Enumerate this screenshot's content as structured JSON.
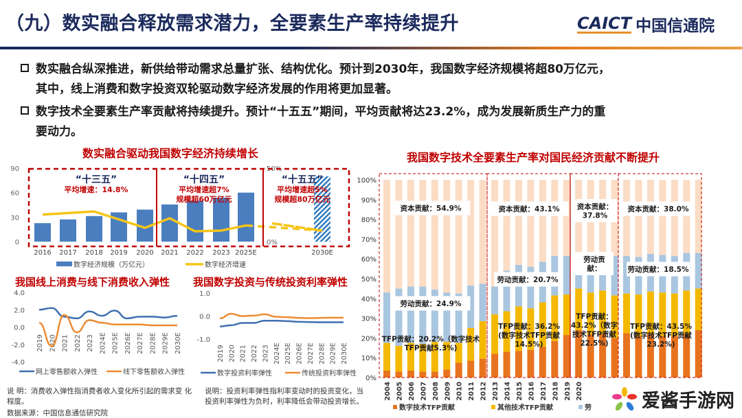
{
  "header": {
    "title": "（九）数实融合释放需求潜力，全要素生产率持续提升",
    "logo_en": "CAICT",
    "logo_cn": "中国信通院"
  },
  "bullets": [
    {
      "line1": "数实融合纵深推进，新供给带动需求总量扩张、结构优化。预计到2030年，我国数字经济规模将超80万亿元，",
      "line2": "其中，线上消费和数字投资双轮驱动数字经济发展的作用将更加显著。"
    },
    {
      "line1": "数字技术全要素生产率贡献将持续提升。预计“十五五”期间，平均贡献将达23.2%，成为发展新质生产力的重",
      "line2": "要动力。"
    }
  ],
  "colors": {
    "title": "#1b2a5c",
    "red": "#c00000",
    "bar_blue": "#4a7ebf",
    "growth_yellow": "#f5c518",
    "online_blue": "#3f6fb0",
    "offline_orange": "#ed8b33",
    "digital_tfp": "#e8731e",
    "other_tfp": "#f5b800",
    "labor": "#a9c6e0",
    "capital": "#fbdcc4"
  },
  "chart_data": [
    {
      "type": "bar",
      "title": "数实融合驱动我国数字经济持续增长",
      "categories": [
        "2016",
        "2017",
        "2018",
        "2019",
        "2020",
        "2021",
        "2022",
        "2023",
        "2025E",
        "2030E"
      ],
      "series": [
        {
          "name": "数字经济规模（万亿元）",
          "type": "bar",
          "axis": "left",
          "values": [
            22.6,
            27.2,
            31.3,
            35.8,
            39.2,
            45.5,
            50.2,
            53.9,
            60,
            80
          ]
        },
        {
          "name": "数字经济增速",
          "type": "line",
          "axis": "right",
          "values": [
            18.4,
            null,
            20.5,
            null,
            9.4,
            15.9,
            7.0,
            7.5,
            11.0,
            7.5
          ]
        }
      ],
      "ylim": [
        0,
        90
      ],
      "yticks": [
        "0",
        "30",
        "60",
        "90"
      ],
      "y2lim": [
        0,
        50
      ],
      "y2ticks": [
        "0%",
        "50%"
      ],
      "annotations": [
        {
          "period": "“十三五”",
          "lines": [
            "平均增速：14.8%"
          ]
        },
        {
          "period": "“十四五”",
          "lines": [
            "平均增速超7%",
            "规模超60万亿元"
          ]
        },
        {
          "period": "“十五五”",
          "lines": [
            "平均增速超5%",
            "规模超80万亿元"
          ]
        }
      ]
    },
    {
      "type": "line",
      "title": "我国线上消费与线下消费收入弹性",
      "categories": [
        "2019",
        "2020",
        "2021",
        "2022",
        "2023",
        "2024E",
        "2025E",
        "2026E",
        "2027E",
        "2028E",
        "2029E",
        "2030E"
      ],
      "series": [
        {
          "name": "网上零售额收入弹性",
          "values": [
            2.0,
            2.2,
            1.2,
            1.0,
            1.8,
            1.3,
            1.9,
            1.0,
            1.2,
            1.2,
            1.1,
            1.3
          ]
        },
        {
          "name": "线下零售额收入弹性",
          "values": [
            0.5,
            -2.2,
            1.4,
            -0.6,
            0.8,
            0.5,
            0.3,
            0.3,
            0.3,
            0.2,
            0.2,
            0.2
          ]
        }
      ],
      "ylim": [
        -4,
        4
      ],
      "yticks": [
        "4.0",
        "2.0",
        "0.0",
        "-2.0",
        "-4.0"
      ]
    },
    {
      "type": "line",
      "title": "我国数字投资与传统投资利率弹性",
      "categories": [
        "2019",
        "2020",
        "2021",
        "2022",
        "2023",
        "2024E",
        "2025E",
        "2026E",
        "2027E",
        "2028E",
        "2029E",
        "2030E"
      ],
      "series": [
        {
          "name": "数字投资利率弹性",
          "values": [
            -0.45,
            -0.4,
            -0.3,
            -0.3,
            -0.2,
            -0.2,
            -0.22,
            -0.25,
            -0.26,
            -0.27,
            -0.27,
            -0.27
          ]
        },
        {
          "name": "传统投资利率弹性",
          "values": [
            -0.1,
            0.1,
            0.0,
            0.02,
            0.08,
            -0.03,
            -0.05,
            -0.08,
            -0.09,
            -0.08,
            -0.07,
            -0.07
          ]
        }
      ],
      "ylim": [
        -1,
        1
      ],
      "yticks": [
        "1.0",
        "0.0",
        "-1.0"
      ]
    },
    {
      "type": "bar",
      "stacked": true,
      "title": "我国数字技术全要素生产率对国民经济贡献不断提升",
      "categories": [
        "2004",
        "2005",
        "2006",
        "2007",
        "2008",
        "2009",
        "2010",
        "2011",
        "2012",
        "2013",
        "2014",
        "2015",
        "2016",
        "2017",
        "2018",
        "2019",
        "2020",
        "",
        "",
        "",
        "",
        "",
        "",
        "",
        "",
        "",
        ""
      ],
      "series": [
        {
          "name": "数字技术TFP贡献",
          "values": [
            3.5,
            3,
            3.5,
            3,
            3,
            4,
            7.5,
            8.5,
            9.5,
            12,
            13,
            13.5,
            14,
            15.5,
            18.5,
            21.5,
            24,
            22,
            22,
            20,
            22.5,
            21,
            22,
            21,
            21,
            22,
            24
          ]
        },
        {
          "name": "其他技术TFP贡献",
          "values": [
            14,
            13,
            14,
            14,
            15,
            14,
            10,
            16.5,
            19,
            20,
            20.5,
            22.5,
            21,
            22.5,
            23,
            20.5,
            21,
            21,
            22,
            21.5,
            20,
            21,
            21.5,
            22,
            21.5,
            22,
            21
          ]
        },
        {
          "name": "劳",
          "values": [
            25.5,
            29,
            28.5,
            29,
            26.5,
            25,
            25,
            21.5,
            19,
            14,
            20.5,
            21,
            21,
            20.5,
            20,
            19.5,
            17,
            18,
            17,
            20,
            19,
            19,
            19,
            19,
            19,
            19,
            18
          ]
        },
        {
          "name": "",
          "values": [
            57,
            55,
            54,
            54,
            55.5,
            57,
            57.5,
            53.5,
            52.5,
            54,
            46,
            43,
            44,
            41.5,
            38.5,
            38.5,
            38,
            39,
            39,
            38.5,
            38.5,
            39,
            37.5,
            38,
            38.5,
            37,
            37
          ]
        }
      ],
      "ylim": [
        0,
        100
      ],
      "yticks": [
        "0%",
        "10%",
        "20%",
        "30%",
        "40%",
        "50%",
        "60%",
        "70%",
        "80%",
        "90%",
        "100%"
      ],
      "annotations": {
        "p1": {
          "capital": "资本贡献：54.9%",
          "labor": "劳动贡献：24.9%",
          "tfp": [
            "TFP贡献：20.2%（数字技术",
            "TFP贡献5.3%)"
          ]
        },
        "p2": {
          "capital": "资本贡献：43.1%",
          "labor": "劳动贡献：20.7%",
          "tfp": [
            "TFP贡献：36.2%",
            "(数字技术TFP贡献",
            "14.5%)"
          ]
        },
        "p3": {
          "capital": [
            "资本贡献：",
            "37.8%"
          ],
          "labor": [
            "劳动贡",
            "献："
          ],
          "tfp": [
            "TFP贡献：",
            "43.2%（数字",
            "技术TFP贡献",
            "22.5%)"
          ]
        },
        "p4": {
          "capital": "资本贡献：38.0%",
          "labor": "劳动贡献：18.5%",
          "tfp": [
            "TFP贡献：43.5%",
            "(数字技术TFP贡献",
            "23.2%)"
          ]
        }
      }
    }
  ],
  "notes": {
    "left_line1": "说 明：消费收入弹性指消费者收入变化所引起的需求变 化",
    "left_line2": "程度。",
    "source": "数据来源：中国信息通信研究院",
    "right_line1": "说明：投资利率弹性指利率变动时的投资变化，当",
    "right_line2": "投资利率弹性为负时，利率降低会带动投资增长。"
  },
  "watermark": {
    "text": "爱酱手游网"
  }
}
